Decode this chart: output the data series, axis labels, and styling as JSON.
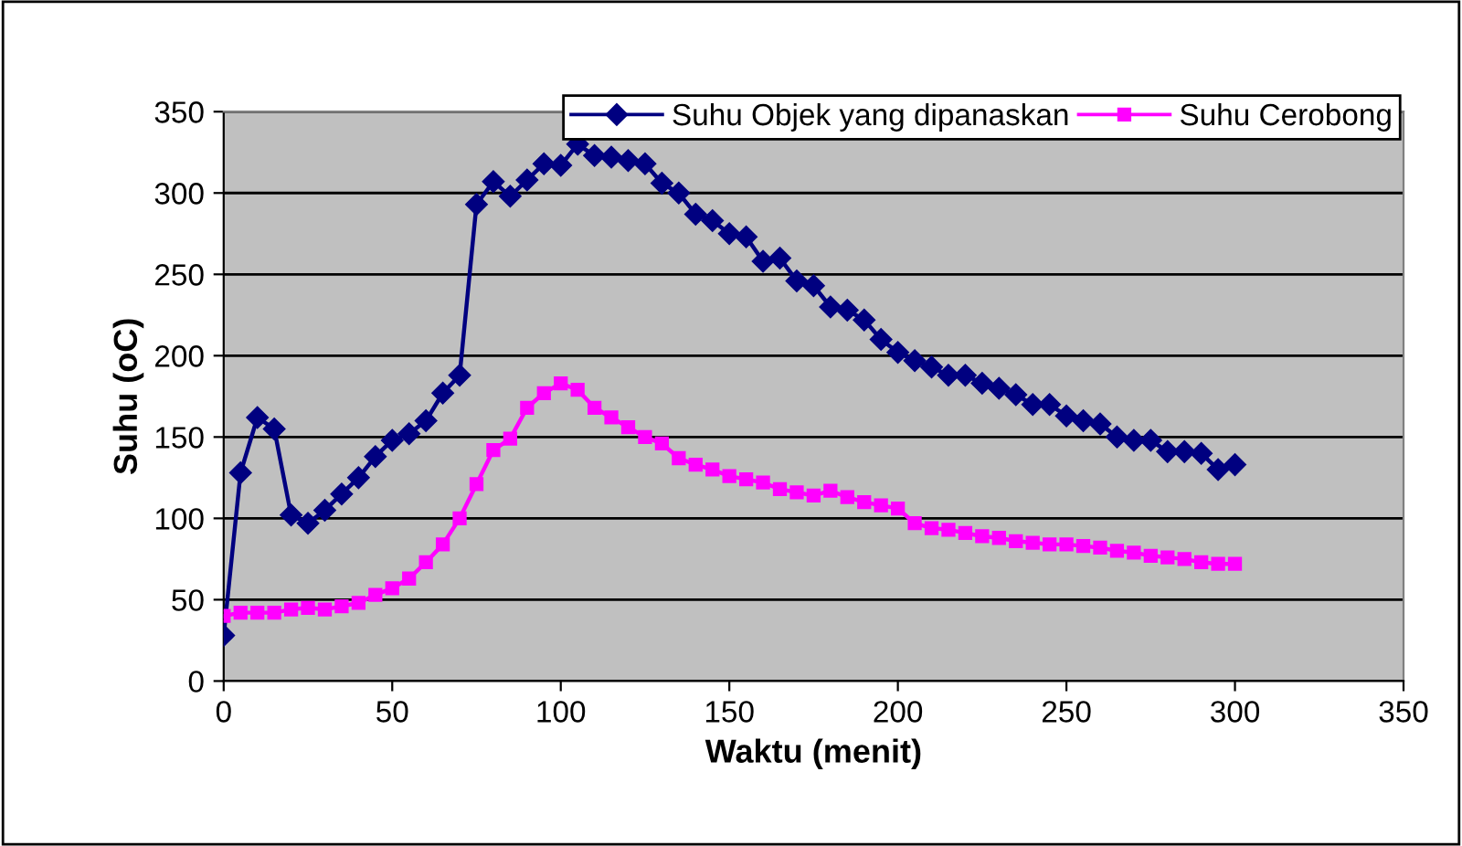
{
  "chart_data": {
    "type": "line",
    "xlabel": "Waktu (menit)",
    "ylabel": "Suhu (oC)",
    "x": [
      0,
      5,
      10,
      15,
      20,
      25,
      30,
      35,
      40,
      45,
      50,
      55,
      60,
      65,
      70,
      75,
      80,
      85,
      90,
      95,
      100,
      105,
      110,
      115,
      120,
      125,
      130,
      135,
      140,
      145,
      150,
      155,
      160,
      165,
      170,
      175,
      180,
      185,
      190,
      195,
      200,
      205,
      210,
      215,
      220,
      225,
      230,
      235,
      240,
      245,
      250,
      255,
      260,
      265,
      270,
      275,
      280,
      285,
      290,
      295,
      300
    ],
    "series": [
      {
        "name": "Suhu Objek yang dipanaskan",
        "color": "#000080",
        "marker": "diamond",
        "values": [
          28,
          128,
          162,
          155,
          102,
          97,
          105,
          115,
          125,
          138,
          148,
          152,
          160,
          177,
          188,
          293,
          307,
          298,
          308,
          318,
          317,
          330,
          323,
          322,
          320,
          318,
          306,
          300,
          287,
          283,
          275,
          273,
          258,
          260,
          246,
          243,
          230,
          228,
          222,
          210,
          202,
          197,
          193,
          188,
          188,
          183,
          180,
          176,
          170,
          170,
          163,
          160,
          158,
          150,
          148,
          148,
          141,
          141,
          140,
          130,
          133
        ]
      },
      {
        "name": "Suhu Cerobong",
        "color": "#ff00ff",
        "marker": "square",
        "values": [
          40,
          42,
          42,
          42,
          44,
          45,
          44,
          46,
          48,
          53,
          57,
          63,
          73,
          84,
          100,
          121,
          142,
          149,
          168,
          177,
          183,
          179,
          168,
          162,
          156,
          150,
          146,
          137,
          133,
          130,
          126,
          124,
          122,
          118,
          116,
          114,
          117,
          113,
          110,
          108,
          106,
          97,
          94,
          93,
          91,
          89,
          88,
          86,
          85,
          84,
          84,
          83,
          82,
          80,
          79,
          77,
          76,
          75,
          73,
          72,
          72
        ]
      }
    ],
    "xlim": [
      0,
      350
    ],
    "xticks": [
      0,
      50,
      100,
      150,
      200,
      250,
      300,
      350
    ],
    "ylim": [
      0,
      350
    ],
    "yticks": [
      0,
      50,
      100,
      150,
      200,
      250,
      300,
      350
    ],
    "grid": "y",
    "legend": "top right",
    "line_style": "solid"
  }
}
